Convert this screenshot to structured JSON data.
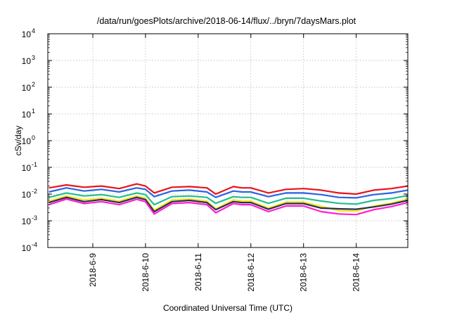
{
  "chart_data": {
    "type": "line",
    "title": "/data/run/goesPlots/archive/2018-06-14/flux/../bryn/7daysMars.plot",
    "xlabel": "Coordinated Universal Time (UTC)",
    "ylabel": "cSv/day",
    "yscale": "log",
    "ylim": [
      0.0001,
      10000
    ],
    "xlim": [
      "2018-06-08T03:30",
      "2018-06-14T23:30"
    ],
    "grid": true,
    "x_ticks": [
      "2018-6-9",
      "2018-6-10",
      "2018-6-11",
      "2018-6-12",
      "2018-6-13",
      "2018-6-14"
    ],
    "x_tick_dates": [
      "2018-06-09",
      "2018-06-10",
      "2018-06-11",
      "2018-06-12",
      "2018-06-13",
      "2018-06-14"
    ],
    "y_ticks": [
      {
        "base": "10",
        "exp": "-4",
        "value": 0.0001
      },
      {
        "base": "10",
        "exp": "-3",
        "value": 0.001
      },
      {
        "base": "10",
        "exp": "-2",
        "value": 0.01
      },
      {
        "base": "10",
        "exp": "-1",
        "value": 0.1
      },
      {
        "base": "10",
        "exp": "0",
        "value": 1
      },
      {
        "base": "10",
        "exp": "1",
        "value": 10
      },
      {
        "base": "10",
        "exp": "2",
        "value": 100
      },
      {
        "base": "10",
        "exp": "3",
        "value": 1000
      },
      {
        "base": "10",
        "exp": "4",
        "value": 10000
      }
    ],
    "x": [
      "2018-06-08T04:00",
      "2018-06-08T12:00",
      "2018-06-08T20:00",
      "2018-06-09T04:00",
      "2018-06-09T12:00",
      "2018-06-09T20:00",
      "2018-06-10T00:00",
      "2018-06-10T04:00",
      "2018-06-10T12:00",
      "2018-06-10T20:00",
      "2018-06-11T04:00",
      "2018-06-11T08:00",
      "2018-06-11T16:00",
      "2018-06-11T20:00",
      "2018-06-12T00:00",
      "2018-06-12T08:00",
      "2018-06-12T16:00",
      "2018-06-13T00:00",
      "2018-06-13T08:00",
      "2018-06-13T16:00",
      "2018-06-14T00:00",
      "2018-06-14T08:00",
      "2018-06-14T16:00",
      "2018-06-14T23:30"
    ],
    "series": [
      {
        "color": "#e8141b",
        "values": [
          0.017,
          0.022,
          0.018,
          0.02,
          0.016,
          0.024,
          0.02,
          0.011,
          0.018,
          0.019,
          0.017,
          0.01,
          0.019,
          0.017,
          0.017,
          0.011,
          0.015,
          0.016,
          0.014,
          0.011,
          0.01,
          0.014,
          0.016,
          0.02
        ]
      },
      {
        "color": "#2a64e0",
        "values": [
          0.012,
          0.017,
          0.013,
          0.015,
          0.012,
          0.017,
          0.015,
          0.008,
          0.013,
          0.014,
          0.012,
          0.0075,
          0.013,
          0.012,
          0.012,
          0.008,
          0.011,
          0.011,
          0.0095,
          0.0075,
          0.0072,
          0.0095,
          0.011,
          0.014
        ]
      },
      {
        "color": "#1fbf8f",
        "values": [
          0.0075,
          0.011,
          0.0085,
          0.0095,
          0.0075,
          0.011,
          0.0095,
          0.004,
          0.008,
          0.0085,
          0.0075,
          0.0045,
          0.008,
          0.0075,
          0.0075,
          0.0045,
          0.007,
          0.007,
          0.0055,
          0.0045,
          0.0042,
          0.0058,
          0.0068,
          0.0088
        ]
      },
      {
        "color": "#f4e81a",
        "values": [
          0.0055,
          0.0085,
          0.006,
          0.007,
          0.0055,
          0.0085,
          0.007,
          0.0025,
          0.006,
          0.0065,
          0.0055,
          0.0028,
          0.006,
          0.0055,
          0.0055,
          0.003,
          0.005,
          0.005,
          0.0035,
          0.0024,
          0.0023,
          0.0036,
          0.0046,
          0.0065
        ]
      },
      {
        "color": "#2b2b5a",
        "values": [
          0.0048,
          0.0075,
          0.0052,
          0.0062,
          0.0048,
          0.0075,
          0.0062,
          0.0022,
          0.0052,
          0.0058,
          0.0048,
          0.0026,
          0.0052,
          0.0048,
          0.0048,
          0.0027,
          0.0044,
          0.0044,
          0.003,
          0.0028,
          0.0027,
          0.0033,
          0.0042,
          0.0058
        ]
      },
      {
        "color": "#ff1fd0",
        "values": [
          0.004,
          0.0065,
          0.0044,
          0.0052,
          0.004,
          0.0064,
          0.0052,
          0.0018,
          0.0044,
          0.0048,
          0.004,
          0.002,
          0.0044,
          0.004,
          0.004,
          0.0022,
          0.0036,
          0.0036,
          0.0022,
          0.0018,
          0.0017,
          0.0026,
          0.0034,
          0.0048
        ]
      }
    ]
  }
}
